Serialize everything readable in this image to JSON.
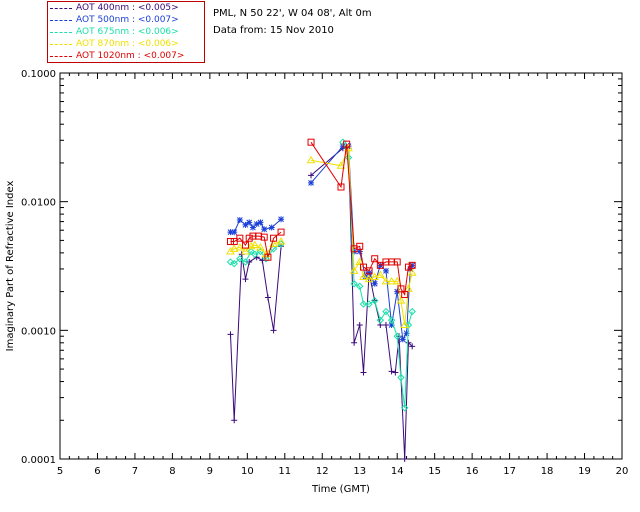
{
  "header": {
    "location": "PML, N 50 22', W 04 08', Alt 0m",
    "date_line": "Data from: 15 Nov 2010"
  },
  "legend": [
    {
      "label": "AOT  400nm : <0.005>",
      "color": "#3a0a7a"
    },
    {
      "label": "AOT  500nm : <0.007>",
      "color": "#1a3fd8"
    },
    {
      "label": "AOT  675nm : <0.006>",
      "color": "#18e0a8"
    },
    {
      "label": "AOT  870nm : <0.006>",
      "color": "#f0e000"
    },
    {
      "label": "AOT 1020nm : <0.007>",
      "color": "#e00000"
    }
  ],
  "chart_data": {
    "type": "line",
    "xlabel": "Time (GMT)",
    "ylabel": "Imaginary Part of Refractive Index",
    "xlim": [
      5,
      20
    ],
    "ylim": [
      0.0001,
      0.1
    ],
    "yscale": "log",
    "x_ticks": [
      "5",
      "6",
      "7",
      "8",
      "9",
      "10",
      "11",
      "12",
      "13",
      "14",
      "15",
      "16",
      "17",
      "18",
      "19",
      "20"
    ],
    "y_ticks": [
      {
        "value": 0.0001,
        "label": "0.0001"
      },
      {
        "value": 0.001,
        "label": "0.0010"
      },
      {
        "value": 0.01,
        "label": "0.0100"
      },
      {
        "value": 0.1,
        "label": "0.1000"
      }
    ],
    "series": [
      {
        "name": "AOT  400nm : <0.005>",
        "color": "#3a0a7a",
        "marker": "plus",
        "segments": [
          [
            [
              9.55,
              0.00093
            ],
            [
              9.65,
              0.0002
            ],
            [
              9.85,
              0.0039
            ],
            [
              9.95,
              0.0025
            ],
            [
              10.05,
              0.0034
            ],
            [
              10.25,
              0.0037
            ],
            [
              10.4,
              0.0035
            ],
            [
              10.55,
              0.0018
            ],
            [
              10.7,
              0.001
            ],
            [
              10.9,
              0.0045
            ]
          ],
          [
            [
              11.7,
              0.016
            ],
            [
              12.55,
              0.026
            ],
            [
              12.7,
              0.026
            ],
            [
              12.85,
              0.0008
            ],
            [
              13.0,
              0.0011
            ],
            [
              13.1,
              0.00047
            ],
            [
              13.25,
              0.0028
            ],
            [
              13.4,
              0.0017
            ],
            [
              13.55,
              0.0011
            ],
            [
              13.7,
              0.0011
            ],
            [
              13.85,
              0.00048
            ],
            [
              13.95,
              0.00047
            ],
            [
              14.05,
              0.0009
            ],
            [
              14.2,
              0.0001
            ],
            [
              14.3,
              0.0008
            ],
            [
              14.4,
              0.00075
            ]
          ]
        ]
      },
      {
        "name": "AOT  500nm : <0.007>",
        "color": "#1a3fd8",
        "marker": "asterisk",
        "segments": [
          [
            [
              9.55,
              0.0058
            ],
            [
              9.65,
              0.0058
            ],
            [
              9.8,
              0.0072
            ],
            [
              9.95,
              0.0066
            ],
            [
              10.05,
              0.0069
            ],
            [
              10.15,
              0.0063
            ],
            [
              10.25,
              0.0067
            ],
            [
              10.35,
              0.0069
            ],
            [
              10.45,
              0.0061
            ],
            [
              10.65,
              0.0063
            ],
            [
              10.9,
              0.0073
            ]
          ],
          [
            [
              11.7,
              0.014
            ],
            [
              12.55,
              0.027
            ],
            [
              12.7,
              0.027
            ],
            [
              12.85,
              0.0041
            ],
            [
              13.0,
              0.0041
            ],
            [
              13.15,
              0.0026
            ],
            [
              13.25,
              0.0028
            ],
            [
              13.4,
              0.0023
            ],
            [
              13.55,
              0.0032
            ],
            [
              13.7,
              0.0029
            ],
            [
              13.85,
              0.0011
            ],
            [
              14.0,
              0.002
            ],
            [
              14.15,
              0.00085
            ],
            [
              14.25,
              0.00095
            ],
            [
              14.35,
              0.003
            ],
            [
              14.4,
              0.0032
            ]
          ]
        ]
      },
      {
        "name": "AOT  675nm : <0.006>",
        "color": "#18e0a8",
        "marker": "diamond",
        "segments": [
          [
            [
              9.55,
              0.0034
            ],
            [
              9.65,
              0.0033
            ],
            [
              9.8,
              0.0036
            ],
            [
              9.95,
              0.0034
            ],
            [
              10.1,
              0.0041
            ],
            [
              10.2,
              0.0039
            ],
            [
              10.35,
              0.0041
            ],
            [
              10.5,
              0.0036
            ],
            [
              10.7,
              0.0043
            ],
            [
              10.9,
              0.0047
            ]
          ],
          [
            [
              12.55,
              0.029
            ],
            [
              12.7,
              0.022
            ],
            [
              12.85,
              0.0023
            ],
            [
              13.0,
              0.0022
            ],
            [
              13.1,
              0.0016
            ],
            [
              13.25,
              0.0016
            ],
            [
              13.4,
              0.0017
            ],
            [
              13.55,
              0.0012
            ],
            [
              13.7,
              0.0014
            ],
            [
              13.85,
              0.0012
            ],
            [
              14.0,
              0.0009
            ],
            [
              14.1,
              0.00043
            ],
            [
              14.2,
              0.00025
            ],
            [
              14.3,
              0.0011
            ],
            [
              14.4,
              0.0014
            ]
          ]
        ]
      },
      {
        "name": "AOT  870nm : <0.006>",
        "color": "#f0e000",
        "marker": "triangle",
        "segments": [
          [
            [
              9.55,
              0.0041
            ],
            [
              9.65,
              0.0043
            ],
            [
              9.8,
              0.0044
            ],
            [
              9.95,
              0.0041
            ],
            [
              10.1,
              0.0045
            ],
            [
              10.2,
              0.0046
            ],
            [
              10.35,
              0.0044
            ],
            [
              10.5,
              0.0039
            ],
            [
              10.7,
              0.0047
            ],
            [
              10.9,
              0.0049
            ]
          ],
          [
            [
              11.7,
              0.021
            ],
            [
              12.5,
              0.019
            ],
            [
              12.7,
              0.026
            ],
            [
              12.85,
              0.0029
            ],
            [
              13.0,
              0.0034
            ],
            [
              13.1,
              0.0026
            ],
            [
              13.25,
              0.0025
            ],
            [
              13.4,
              0.0026
            ],
            [
              13.55,
              0.0027
            ],
            [
              13.7,
              0.0024
            ],
            [
              13.85,
              0.0024
            ],
            [
              14.0,
              0.0024
            ],
            [
              14.1,
              0.0017
            ],
            [
              14.2,
              0.0011
            ],
            [
              14.3,
              0.0021
            ],
            [
              14.4,
              0.0028
            ]
          ]
        ]
      },
      {
        "name": "AOT 1020nm : <0.007>",
        "color": "#e00000",
        "marker": "square",
        "segments": [
          [
            [
              9.55,
              0.0049
            ],
            [
              9.65,
              0.0049
            ],
            [
              9.8,
              0.0052
            ],
            [
              9.95,
              0.0046
            ],
            [
              10.05,
              0.0052
            ],
            [
              10.15,
              0.0054
            ],
            [
              10.3,
              0.0054
            ],
            [
              10.45,
              0.0053
            ],
            [
              10.55,
              0.0037
            ],
            [
              10.7,
              0.0052
            ],
            [
              10.9,
              0.0058
            ]
          ],
          [
            [
              11.7,
              0.029
            ],
            [
              12.5,
              0.013
            ],
            [
              12.65,
              0.028
            ],
            [
              12.85,
              0.0043
            ],
            [
              13.0,
              0.0045
            ],
            [
              13.1,
              0.0031
            ],
            [
              13.25,
              0.0029
            ],
            [
              13.4,
              0.0036
            ],
            [
              13.55,
              0.0032
            ],
            [
              13.7,
              0.0034
            ],
            [
              13.85,
              0.0034
            ],
            [
              14.0,
              0.0034
            ],
            [
              14.1,
              0.0021
            ],
            [
              14.2,
              0.0019
            ],
            [
              14.3,
              0.0031
            ],
            [
              14.4,
              0.0032
            ]
          ]
        ]
      }
    ]
  }
}
